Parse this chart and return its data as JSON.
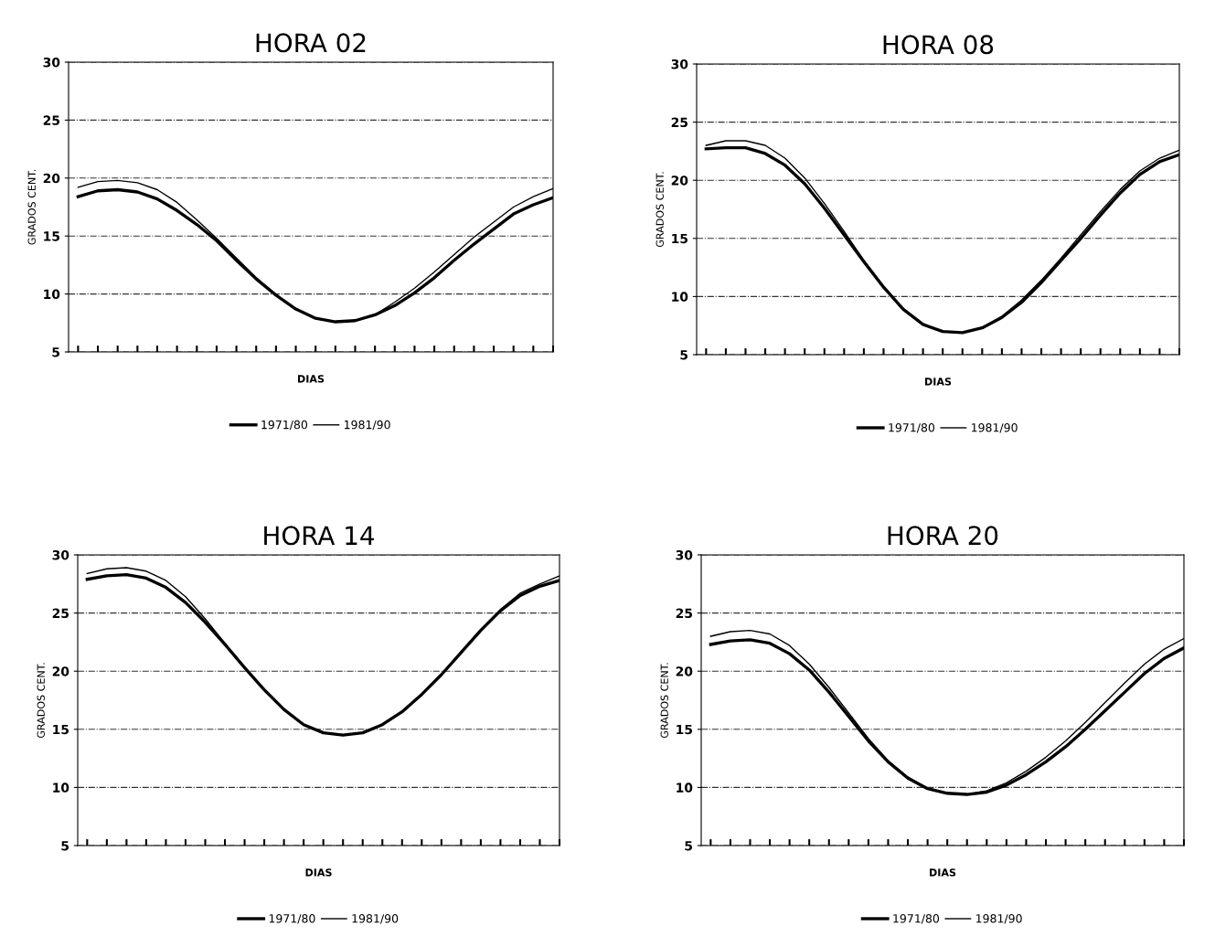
{
  "chart_data": [
    {
      "type": "line",
      "title": "HORA 02",
      "xlabel": "DIAS",
      "ylabel": "GRADOS CENT.",
      "categories": [
        null,
        null,
        null,
        null,
        null,
        null,
        null,
        null,
        null,
        null,
        null,
        null,
        null,
        null,
        null,
        null,
        null,
        null,
        null,
        null,
        null,
        null,
        null,
        null,
        null
      ],
      "ylim": [
        5,
        30
      ],
      "yticks": [
        5,
        10,
        15,
        20,
        25,
        30
      ],
      "grid": "y",
      "legend": "bottom",
      "tick_labels": "y",
      "marker": "none",
      "line_style": "solid",
      "series": [
        {
          "name": "1971/80",
          "color": "#000000",
          "values": [
            18.4,
            18.9,
            19.0,
            18.8,
            18.2,
            17.2,
            16.0,
            14.6,
            12.9,
            11.3,
            9.9,
            8.7,
            7.9,
            7.6,
            7.7,
            8.2,
            9.0,
            10.1,
            11.4,
            12.9,
            14.3,
            15.6,
            16.9,
            17.7,
            18.3
          ]
        },
        {
          "name": "1981/90",
          "color": "#000000",
          "values": [
            19.2,
            19.7,
            19.8,
            19.6,
            19.0,
            17.9,
            16.4,
            14.8,
            13.1,
            11.4,
            9.9,
            8.7,
            7.9,
            7.6,
            7.7,
            8.2,
            9.3,
            10.5,
            11.9,
            13.4,
            14.9,
            16.2,
            17.5,
            18.4,
            19.1
          ]
        }
      ]
    },
    {
      "type": "line",
      "title": "HORA 08",
      "xlabel": "DIAS",
      "ylabel": "GRADOS CENT.",
      "categories": [
        null,
        null,
        null,
        null,
        null,
        null,
        null,
        null,
        null,
        null,
        null,
        null,
        null,
        null,
        null,
        null,
        null,
        null,
        null,
        null,
        null,
        null,
        null,
        null,
        null
      ],
      "ylim": [
        5,
        30
      ],
      "yticks": [
        5,
        10,
        15,
        20,
        25,
        30
      ],
      "grid": "y",
      "legend": "bottom",
      "tick_labels": "y",
      "marker": "none",
      "line_style": "solid",
      "series": [
        {
          "name": "1971/80",
          "color": "#000000",
          "values": [
            22.7,
            22.8,
            22.8,
            22.3,
            21.3,
            19.7,
            17.6,
            15.3,
            13.0,
            10.8,
            8.9,
            7.6,
            7.0,
            6.9,
            7.3,
            8.2,
            9.5,
            11.2,
            13.1,
            15.0,
            17.0,
            18.9,
            20.5,
            21.6,
            22.2
          ]
        },
        {
          "name": "1981/90",
          "color": "#000000",
          "values": [
            23.0,
            23.4,
            23.4,
            23.0,
            21.9,
            20.2,
            18.0,
            15.6,
            13.1,
            10.9,
            8.9,
            7.6,
            7.0,
            6.9,
            7.3,
            8.3,
            9.7,
            11.4,
            13.3,
            15.3,
            17.3,
            19.2,
            20.8,
            21.9,
            22.6
          ]
        }
      ]
    },
    {
      "type": "line",
      "title": "HORA 14",
      "xlabel": "DIAS",
      "ylabel": "GRADOS CENT.",
      "categories": [
        null,
        null,
        null,
        null,
        null,
        null,
        null,
        null,
        null,
        null,
        null,
        null,
        null,
        null,
        null,
        null,
        null,
        null,
        null,
        null,
        null,
        null,
        null,
        null,
        null
      ],
      "ylim": [
        5,
        30
      ],
      "yticks": [
        5,
        10,
        15,
        20,
        25,
        30
      ],
      "grid": "y",
      "legend": "bottom",
      "tick_labels": "y",
      "marker": "none",
      "line_style": "solid",
      "series": [
        {
          "name": "1971/80",
          "color": "#000000",
          "values": [
            27.9,
            28.2,
            28.3,
            28.0,
            27.2,
            25.9,
            24.2,
            22.3,
            20.3,
            18.4,
            16.7,
            15.4,
            14.7,
            14.5,
            14.7,
            15.4,
            16.5,
            18.0,
            19.7,
            21.6,
            23.5,
            25.2,
            26.5,
            27.3,
            27.8
          ]
        },
        {
          "name": "1981/90",
          "color": "#000000",
          "values": [
            28.4,
            28.8,
            28.9,
            28.6,
            27.8,
            26.4,
            24.5,
            22.4,
            20.3,
            18.4,
            16.7,
            15.4,
            14.7,
            14.5,
            14.7,
            15.4,
            16.5,
            18.0,
            19.7,
            21.7,
            23.6,
            25.3,
            26.7,
            27.5,
            28.2
          ]
        }
      ]
    },
    {
      "type": "line",
      "title": "HORA 20",
      "xlabel": "DIAS",
      "ylabel": "GRADOS CENT.",
      "categories": [
        null,
        null,
        null,
        null,
        null,
        null,
        null,
        null,
        null,
        null,
        null,
        null,
        null,
        null,
        null,
        null,
        null,
        null,
        null,
        null,
        null,
        null,
        null,
        null,
        null
      ],
      "ylim": [
        5,
        30
      ],
      "yticks": [
        5,
        10,
        15,
        20,
        25,
        30
      ],
      "grid": "y",
      "legend": "bottom",
      "tick_labels": "y",
      "marker": "none",
      "line_style": "solid",
      "series": [
        {
          "name": "1971/80",
          "color": "#000000",
          "values": [
            22.3,
            22.6,
            22.7,
            22.4,
            21.5,
            20.1,
            18.2,
            16.1,
            14.0,
            12.2,
            10.8,
            9.9,
            9.5,
            9.4,
            9.6,
            10.2,
            11.1,
            12.2,
            13.5,
            15.0,
            16.6,
            18.2,
            19.8,
            21.1,
            22.0
          ]
        },
        {
          "name": "1981/90",
          "color": "#000000",
          "values": [
            23.0,
            23.4,
            23.5,
            23.2,
            22.2,
            20.6,
            18.6,
            16.4,
            14.2,
            12.3,
            10.9,
            9.9,
            9.5,
            9.4,
            9.7,
            10.4,
            11.4,
            12.6,
            14.0,
            15.6,
            17.3,
            19.0,
            20.6,
            21.9,
            22.8
          ]
        }
      ]
    }
  ]
}
